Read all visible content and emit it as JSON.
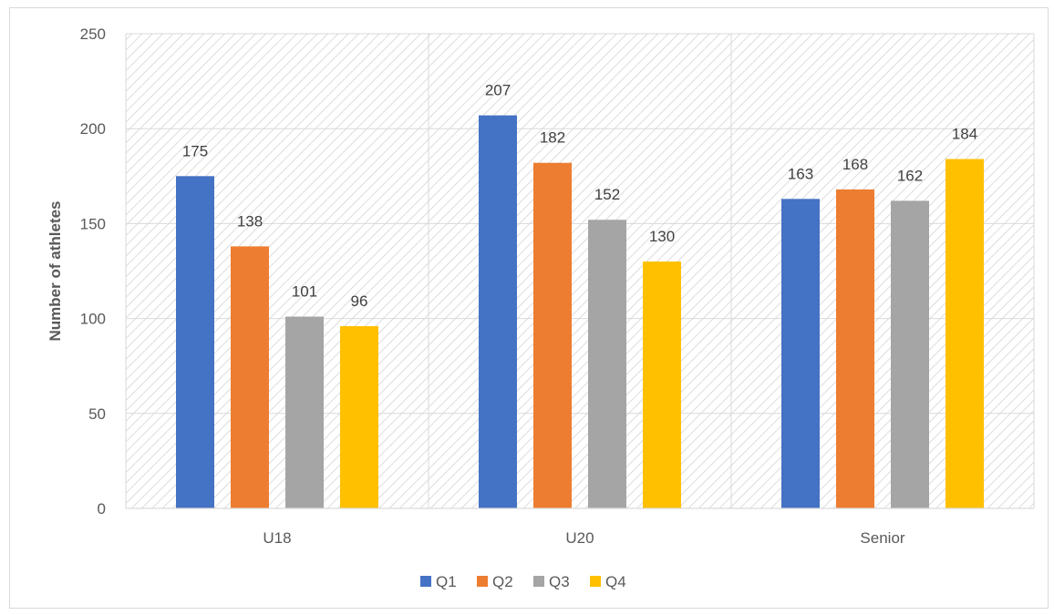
{
  "chart_data": {
    "type": "bar",
    "categories": [
      "U18",
      "U20",
      "Senior"
    ],
    "series": [
      {
        "name": "Q1",
        "values": [
          175,
          207,
          163
        ],
        "color": "#4472C4"
      },
      {
        "name": "Q2",
        "values": [
          138,
          182,
          168
        ],
        "color": "#ED7D31"
      },
      {
        "name": "Q3",
        "values": [
          101,
          152,
          162
        ],
        "color": "#A5A5A5"
      },
      {
        "name": "Q4",
        "values": [
          96,
          130,
          184
        ],
        "color": "#FFC000"
      }
    ],
    "title": "",
    "xlabel": "",
    "ylabel": "Number of athletes",
    "ylim": [
      0,
      250
    ],
    "yticks": [
      0,
      50,
      100,
      150,
      200,
      250
    ],
    "grid": true,
    "legend_position": "bottom",
    "data_labels": true,
    "plot_background": "diagonal-hatch"
  }
}
